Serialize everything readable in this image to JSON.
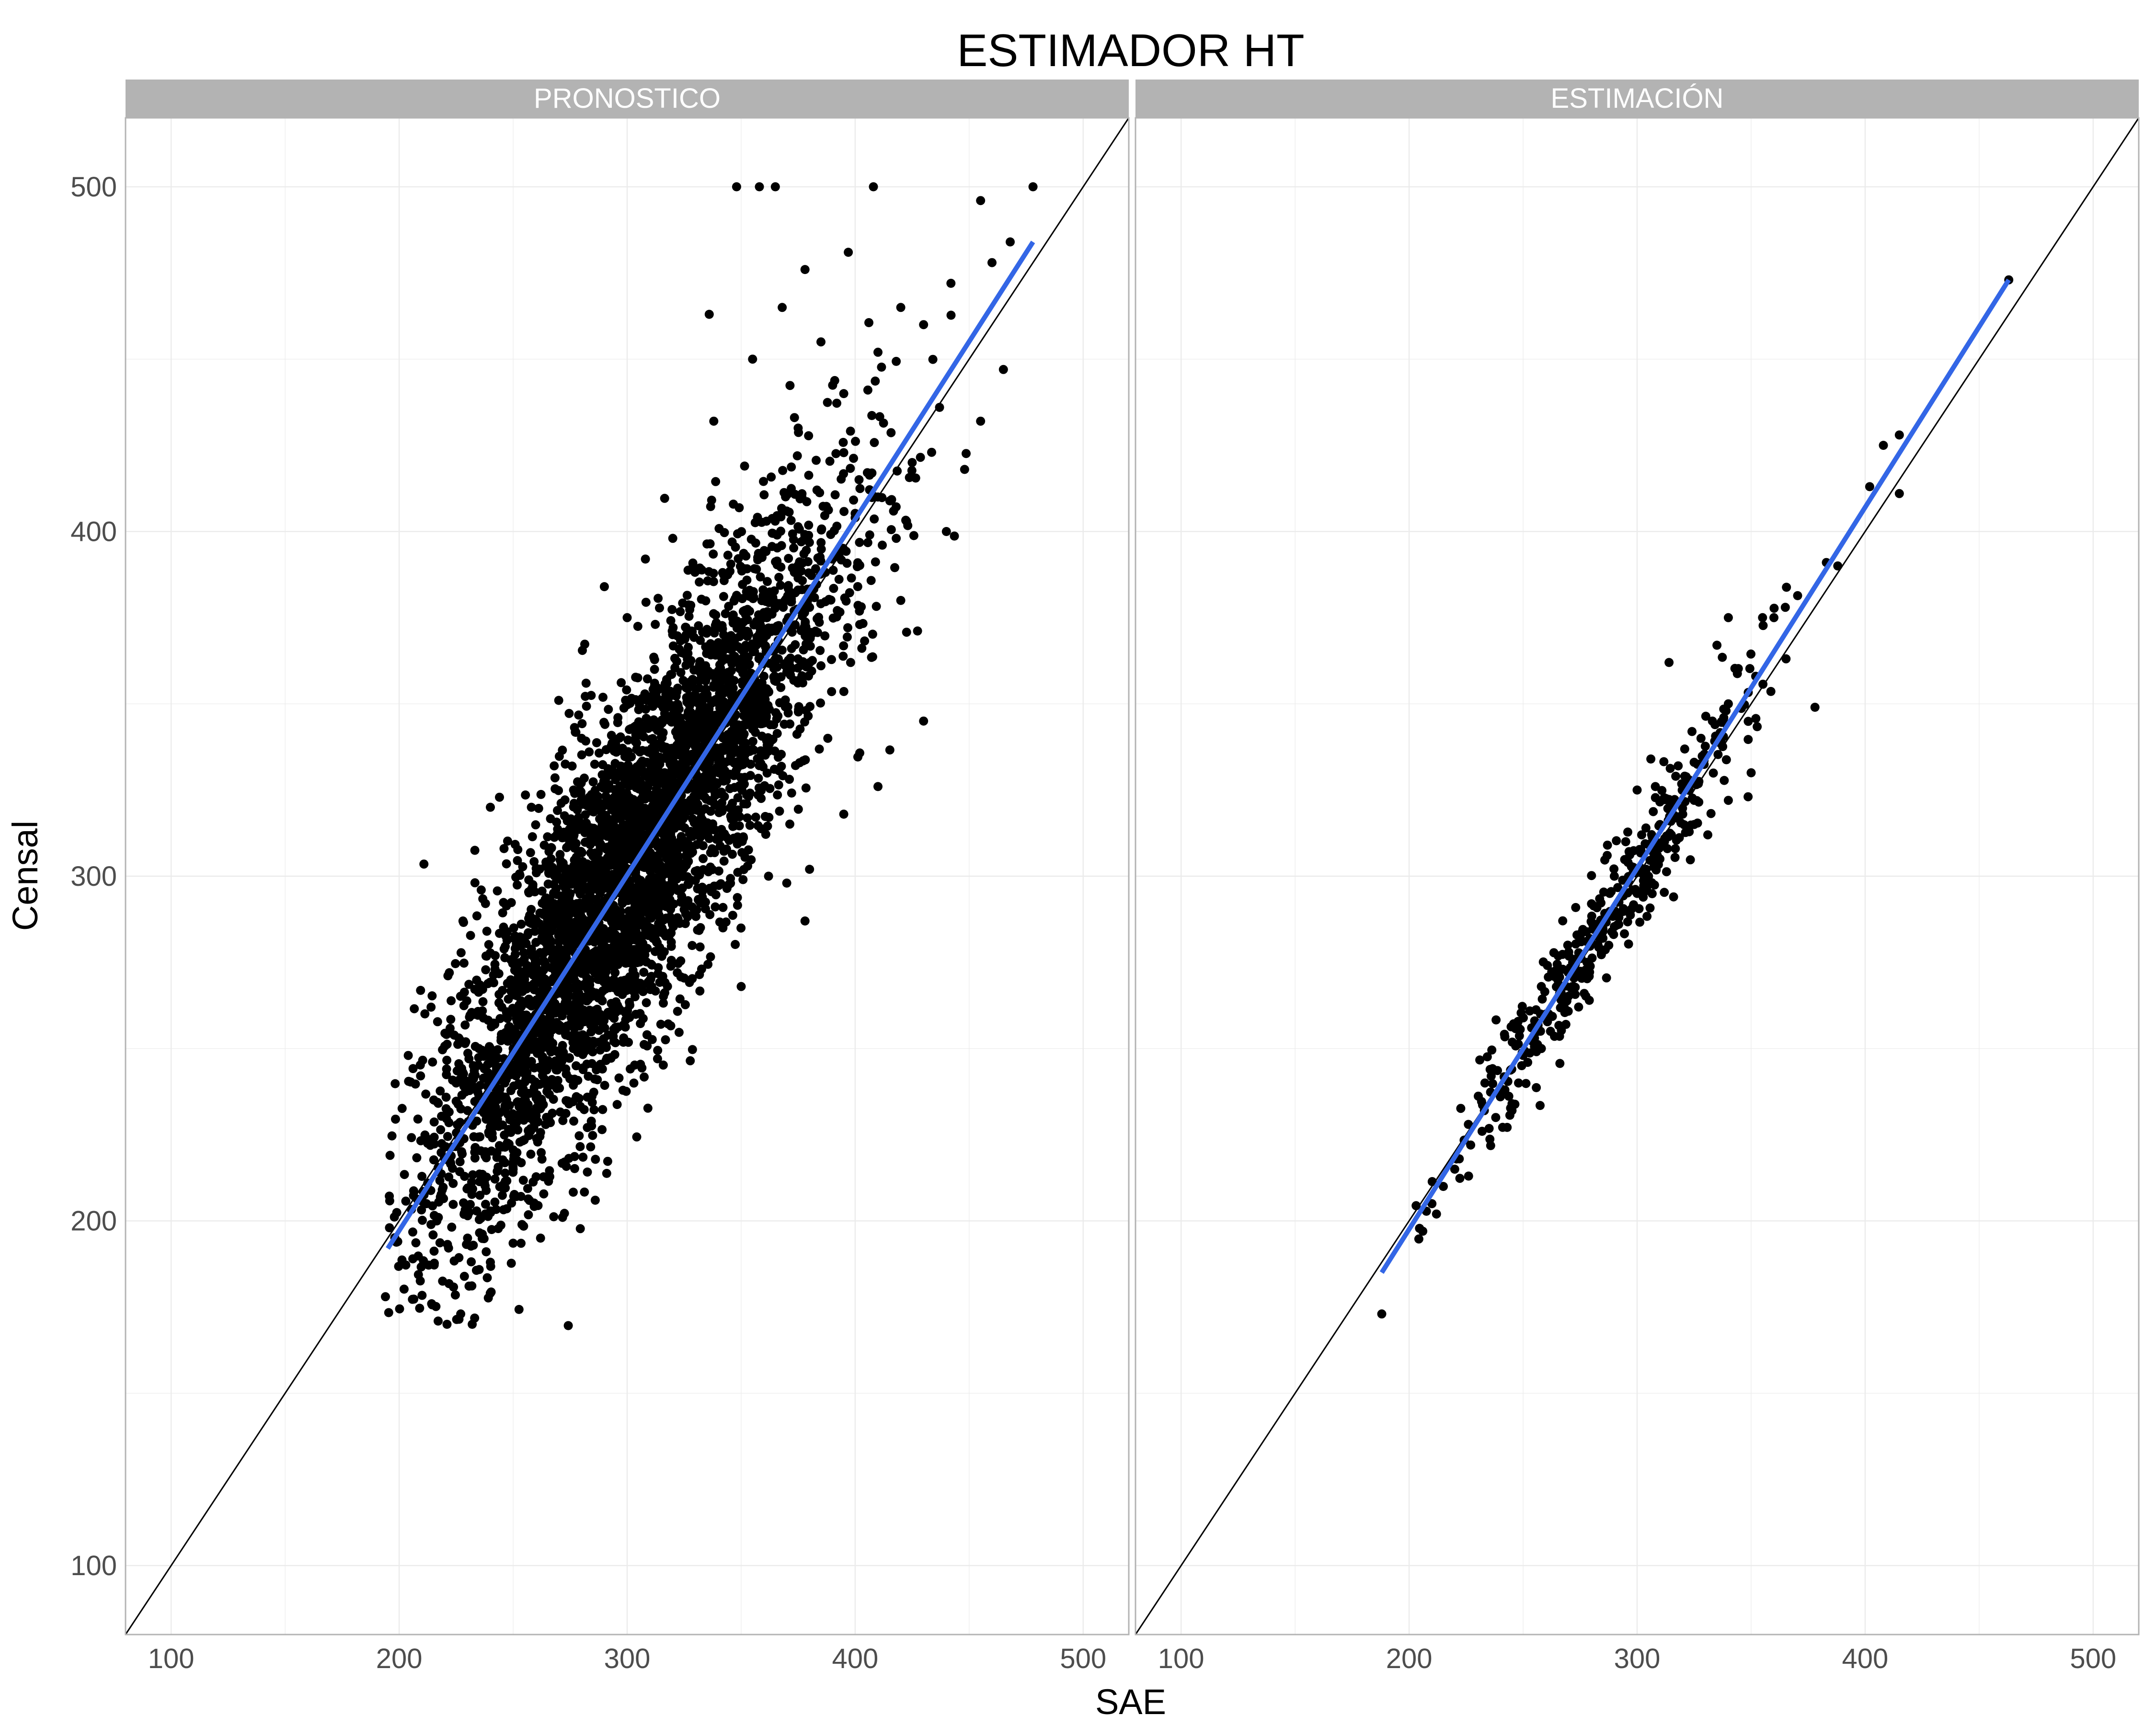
{
  "chart_data": {
    "type": "scatter",
    "title": "ESTIMADOR HT",
    "xlabel": "SAE",
    "ylabel": "Censal",
    "xlim": [
      80,
      520
    ],
    "ylim": [
      80,
      520
    ],
    "x_ticks": [
      "100",
      "200",
      "300",
      "400",
      "500"
    ],
    "y_ticks": [
      "100",
      "200",
      "300",
      "400",
      "500"
    ],
    "grid": true,
    "legend": "none",
    "colors": {
      "points": "#000000",
      "fit_line": "#3366e6",
      "identity_line": "#000000",
      "strip": "#b3b3b3",
      "grid": "#ebebeb",
      "panel_border": "#b3b3b3"
    },
    "identity_line": {
      "slope": 1,
      "intercept": 0
    },
    "panels": [
      {
        "name": "PRONOSTICO",
        "fit_line": {
          "x": [
            195,
            478
          ],
          "y": [
            192,
            484
          ]
        },
        "points_note": "approx. 6000 points, strongly correlated around y = x",
        "points": [
          [
            348,
            500
          ],
          [
            358,
            500
          ],
          [
            365,
            500
          ],
          [
            408,
            500
          ],
          [
            478,
            500
          ],
          [
            455,
            496
          ],
          [
            397,
            481
          ],
          [
            378,
            476
          ],
          [
            336,
            463
          ],
          [
            368,
            465
          ],
          [
            355,
            450
          ],
          [
            385,
            455
          ],
          [
            442,
            472
          ],
          [
            468,
            484
          ],
          [
            460,
            478
          ],
          [
            420,
            465
          ],
          [
            430,
            460
          ],
          [
            410,
            452
          ],
          [
            395,
            440
          ],
          [
            375,
            430
          ],
          [
            338,
            432
          ],
          [
            320,
            398
          ],
          [
            308,
            392
          ],
          [
            290,
            384
          ],
          [
            300,
            375
          ],
          [
            312,
            360
          ],
          [
            282,
            356
          ],
          [
            270,
            351
          ],
          [
            280,
            340
          ],
          [
            268,
            332
          ],
          [
            258,
            320
          ],
          [
            240,
            320
          ],
          [
            246,
            308
          ],
          [
            236,
            296
          ],
          [
            228,
            287
          ],
          [
            222,
            272
          ],
          [
            214,
            262
          ],
          [
            204,
            248
          ],
          [
            196,
            219
          ],
          [
            194,
            178
          ],
          [
            221,
            170
          ],
          [
            227,
            173
          ],
          [
            212,
            205
          ],
          [
            206,
            189
          ],
          [
            230,
            195
          ],
          [
            240,
            188
          ],
          [
            262,
            195
          ],
          [
            286,
            206
          ],
          [
            322,
            272
          ],
          [
            350,
            268
          ],
          [
            378,
            287
          ],
          [
            380,
            302
          ],
          [
            395,
            318
          ],
          [
            410,
            326
          ],
          [
            430,
            345
          ],
          [
            420,
            380
          ],
          [
            440,
            400
          ],
          [
            455,
            432
          ],
          [
            465,
            447
          ],
          [
            448,
            418
          ],
          [
            362,
            300
          ],
          [
            370,
            298
          ],
          [
            342,
            285
          ],
          [
            398,
            362
          ],
          [
            402,
            373
          ],
          [
            418,
            398
          ],
          [
            388,
            340
          ],
          [
            330,
            330
          ],
          [
            340,
            355
          ],
          [
            362,
            372
          ],
          [
            300,
            305
          ],
          [
            310,
            315
          ],
          [
            290,
            290
          ],
          [
            280,
            280
          ],
          [
            270,
            270
          ],
          [
            260,
            258
          ],
          [
            250,
            250
          ],
          [
            240,
            242
          ],
          [
            230,
            232
          ],
          [
            320,
            320
          ],
          [
            330,
            322
          ],
          [
            350,
            352
          ],
          [
            360,
            358
          ],
          [
            370,
            374
          ],
          [
            380,
            378
          ],
          [
            390,
            392
          ],
          [
            400,
            404
          ],
          [
            410,
            410
          ],
          [
            425,
            420
          ],
          [
            437,
            436
          ],
          [
            285,
            300
          ],
          [
            295,
            318
          ],
          [
            305,
            290
          ],
          [
            315,
            300
          ],
          [
            275,
            295
          ],
          [
            265,
            280
          ],
          [
            255,
            270
          ],
          [
            245,
            262
          ],
          [
            235,
            250
          ],
          [
            225,
            240
          ]
        ]
      },
      {
        "name": "ESTIMACIÓN",
        "fit_line": {
          "x": [
            188,
            463
          ],
          "y": [
            185,
            473
          ]
        },
        "points_note": "approx. 400 points tightly clustered around y = x",
        "points": [
          [
            463,
            473
          ],
          [
            415,
            428
          ],
          [
            408,
            425
          ],
          [
            402,
            413
          ],
          [
            415,
            411
          ],
          [
            388,
            390
          ],
          [
            383,
            391
          ],
          [
            378,
            349
          ],
          [
            360,
            375
          ],
          [
            365,
            378
          ],
          [
            355,
            375
          ],
          [
            340,
            375
          ],
          [
            352,
            358
          ],
          [
            350,
            330
          ],
          [
            340,
            350
          ],
          [
            333,
            345
          ],
          [
            331,
            312
          ],
          [
            335,
            367
          ],
          [
            340,
            322
          ],
          [
            325,
            315
          ],
          [
            314,
            362
          ],
          [
            308,
            326
          ],
          [
            306,
            334
          ],
          [
            300,
            325
          ],
          [
            310,
            315
          ],
          [
            295,
            310
          ],
          [
            287,
            309
          ],
          [
            290,
            300
          ],
          [
            280,
            292
          ],
          [
            275,
            282
          ],
          [
            270,
            278
          ],
          [
            266,
            266
          ],
          [
            260,
            260
          ],
          [
            255,
            253
          ],
          [
            250,
            248
          ],
          [
            245,
            244
          ],
          [
            240,
            236
          ],
          [
            233,
            232
          ],
          [
            227,
            222
          ],
          [
            222,
            218
          ],
          [
            215,
            210
          ],
          [
            210,
            205
          ],
          [
            206,
            197
          ],
          [
            212,
            202
          ],
          [
            220,
            215
          ],
          [
            188,
            173
          ],
          [
            316,
            294
          ],
          [
            300,
            295
          ],
          [
            292,
            288
          ],
          [
            285,
            282
          ],
          [
            278,
            275
          ],
          [
            272,
            268
          ],
          [
            268,
            262
          ],
          [
            262,
            255
          ],
          [
            258,
            250
          ],
          [
            252,
            246
          ],
          [
            248,
            240
          ],
          [
            242,
            238
          ],
          [
            238,
            230
          ],
          [
            232,
            226
          ],
          [
            305,
            300
          ],
          [
            310,
            305
          ],
          [
            315,
            312
          ],
          [
            320,
            318
          ],
          [
            325,
            322
          ],
          [
            282,
            286
          ],
          [
            276,
            284
          ],
          [
            288,
            295
          ],
          [
            296,
            304
          ],
          [
            302,
            312
          ],
          [
            318,
            332
          ],
          [
            328,
            340
          ],
          [
            338,
            346
          ],
          [
            258,
            268
          ],
          [
            248,
            256
          ],
          [
            236,
            242
          ],
          [
            226,
            228
          ],
          [
            298,
            296
          ],
          [
            304,
            302
          ],
          [
            312,
            310
          ]
        ]
      }
    ]
  }
}
